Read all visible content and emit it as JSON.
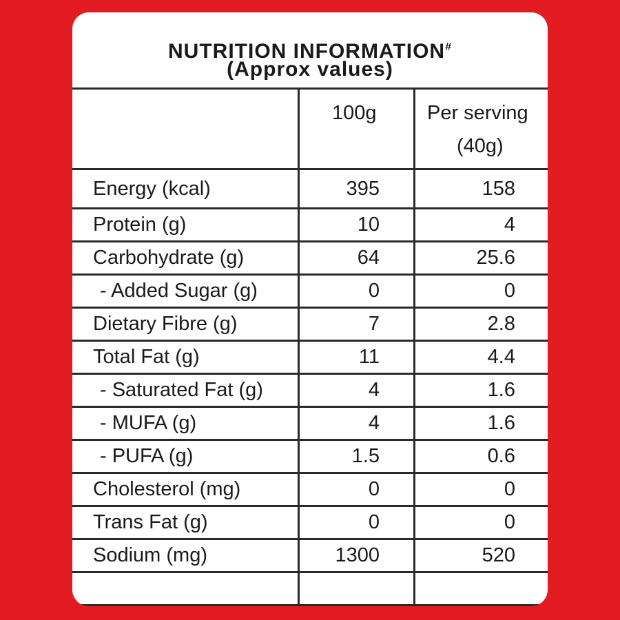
{
  "header": {
    "title": "NUTRITION INFORMATION",
    "title_mark": "#",
    "subtitle": "(Approx values)"
  },
  "table": {
    "columns": {
      "per_100g": "100g",
      "per_serving_line1": "Per serving",
      "per_serving_line2": "(40g)"
    },
    "rows": [
      [
        "Energy (kcal)",
        395,
        158
      ],
      [
        "Protein (g)",
        10,
        4
      ],
      [
        "Carbohydrate (g)",
        64,
        25.6
      ],
      [
        "- Added Sugar (g)",
        0,
        0
      ],
      [
        "Dietary Fibre (g)",
        7,
        2.8
      ],
      [
        "Total Fat (g)",
        11,
        4.4
      ],
      [
        "- Saturated Fat (g)",
        4,
        1.6
      ],
      [
        "- MUFA (g)",
        4,
        1.6
      ],
      [
        "- PUFA (g)",
        1.5,
        0.6
      ],
      [
        "Cholesterol (mg)",
        0,
        0
      ],
      [
        "Trans Fat (g)",
        0,
        0
      ],
      [
        "Sodium (mg)",
        1300,
        520
      ]
    ]
  }
}
